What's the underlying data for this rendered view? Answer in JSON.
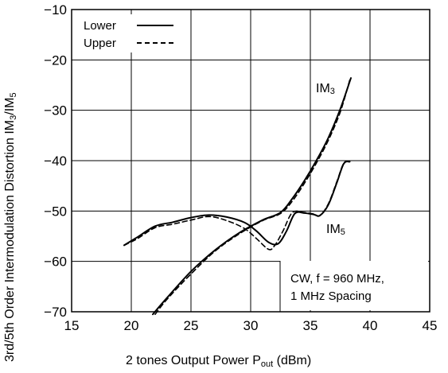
{
  "chart_data": {
    "type": "line",
    "xlabel": "2 tones Output Power  P",
    "xlabel_sub": "out",
    "xlabel_unit": " (dBm)",
    "ylabel": "3rd/5th Order Intermodulation Distortion  IM",
    "ylabel_sub1": "3",
    "ylabel_mid": "/IM",
    "ylabel_sub2": "5",
    "xlim": [
      15,
      45
    ],
    "ylim": [
      -70,
      -10
    ],
    "xticks": [
      "15",
      "20",
      "25",
      "30",
      "35",
      "40",
      "45"
    ],
    "yticks": [
      "−10",
      "−20",
      "−30",
      "−40",
      "−50",
      "−60",
      "−70"
    ],
    "grid": true,
    "legend": {
      "placement": "top-left",
      "entries": [
        {
          "name": "Lower",
          "style": "solid"
        },
        {
          "name": "Upper",
          "style": "dashed"
        }
      ]
    },
    "curve_labels": {
      "im3": {
        "main": "IM",
        "sub": "3"
      },
      "im5": {
        "main": "IM",
        "sub": "5"
      }
    },
    "annotation": {
      "line1": "CW, f = 960 MHz,",
      "line2": "1 MHz Spacing"
    },
    "series": [
      {
        "name": "Lower",
        "curve": "IM3",
        "style": "solid",
        "x": [
          21.8,
          23,
          25,
          27,
          29,
          31,
          32.5,
          33.5,
          34.5,
          35.5,
          36.5,
          37.5,
          38.4
        ],
        "y": [
          -70.5,
          -67.2,
          -62,
          -57.8,
          -54.4,
          -51.8,
          -50.3,
          -47.5,
          -44,
          -40,
          -35.5,
          -29.8,
          -23.6
        ]
      },
      {
        "name": "Upper",
        "curve": "IM3",
        "style": "dashed",
        "x": [
          22,
          23,
          25,
          27,
          29,
          31,
          32.5,
          33.5,
          34.5,
          35.5,
          36.5,
          37.5,
          38.3
        ],
        "y": [
          -70.5,
          -67.5,
          -62.5,
          -58,
          -54.6,
          -51.9,
          -50.5,
          -48,
          -44.5,
          -40.5,
          -36,
          -30.4,
          -24
        ]
      },
      {
        "name": "Lower",
        "curve": "IM5",
        "style": "solid",
        "x": [
          19.4,
          20.5,
          22,
          23.5,
          25,
          26.5,
          28,
          29.5,
          30.5,
          31.5,
          32.3,
          33,
          33.7,
          34.5,
          35.3,
          35.8,
          36.5,
          37.2,
          37.8,
          38.3
        ],
        "y": [
          -56.8,
          -55.2,
          -53,
          -52.2,
          -51.3,
          -50.8,
          -51.2,
          -52.3,
          -54,
          -56.2,
          -56.5,
          -54,
          -50.5,
          -50.4,
          -50.7,
          -50.9,
          -48.8,
          -44.5,
          -40.6,
          -40.2
        ]
      },
      {
        "name": "Upper",
        "curve": "IM5",
        "style": "dashed",
        "x": [
          19.4,
          20.5,
          22,
          23.5,
          25,
          26.5,
          28,
          29.5,
          30.5,
          31.5,
          32,
          32.7,
          33.5,
          34.5,
          35.3,
          35.8,
          36.5,
          37.2,
          37.8,
          38.3
        ],
        "y": [
          -56.8,
          -55.5,
          -53.3,
          -52.6,
          -51.8,
          -51.1,
          -51.9,
          -53.5,
          -55.5,
          -57.6,
          -56.9,
          -54,
          -50.3,
          -50.3,
          -50.6,
          -50.9,
          -48.6,
          -44.3,
          -40.5,
          -40.2
        ]
      }
    ]
  }
}
